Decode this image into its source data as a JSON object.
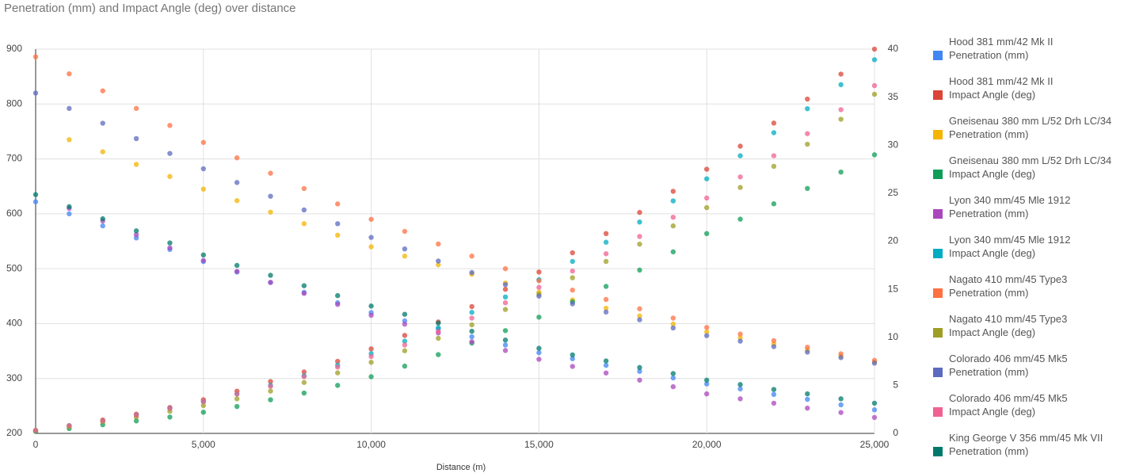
{
  "chart_data": {
    "type": "scatter",
    "title": "Penetration (mm) and Impact Angle (deg) over distance",
    "xlabel": "Distance (m)",
    "x": [
      0,
      1000,
      2000,
      3000,
      4000,
      5000,
      6000,
      7000,
      8000,
      9000,
      10000,
      11000,
      12000,
      13000,
      14000,
      15000,
      16000,
      17000,
      18000,
      19000,
      20000,
      21000,
      22000,
      23000,
      24000,
      25000
    ],
    "xlim": [
      0,
      25000
    ],
    "xticks": [
      0,
      {
        "value": 5000,
        "label": "5,000"
      },
      {
        "value": 10000,
        "label": "10,000"
      },
      {
        "value": 15000,
        "label": "15,000"
      },
      {
        "value": 20000,
        "label": "20,000"
      },
      {
        "value": 25000,
        "label": "25,000"
      }
    ],
    "ylim": [
      200,
      900
    ],
    "yticks": [
      200,
      300,
      400,
      500,
      600,
      700,
      800,
      900
    ],
    "y2lim": [
      0,
      40
    ],
    "y2ticks": [
      0,
      5,
      10,
      15,
      20,
      25,
      30,
      35,
      40
    ],
    "grid": true,
    "legend_position": "right",
    "series": [
      {
        "name": "Hood 381 mm/42 Mk II\nPenetration (mm)",
        "color": "#4285f4",
        "values": [
          622,
          600,
          578,
          556,
          535,
          513,
          494,
          475,
          457,
          438,
          420,
          405,
          390,
          376,
          361,
          347,
          336,
          324,
          313,
          301,
          290,
          281,
          271,
          262,
          252,
          243
        ]
      },
      {
        "name": "Hood 381 mm/42 Mk II\nImpact Angle (deg)",
        "color": "#db4437",
        "axis": "y2",
        "values": [
          0.3,
          0.8,
          1.4,
          2.0,
          2.7,
          3.5,
          4.4,
          5.4,
          6.4,
          7.5,
          8.8,
          10.2,
          11.6,
          13.2,
          15.0,
          16.8,
          18.8,
          20.8,
          23.0,
          25.2,
          27.5,
          29.9,
          32.3,
          34.8,
          37.4,
          40.0
        ]
      },
      {
        "name": "Gneisenau 380 mm L/52 Drh LC/34\nPenetration (mm)",
        "color": "#f4b400",
        "values": [
          null,
          735,
          713,
          690,
          668,
          645,
          624,
          603,
          582,
          561,
          540,
          523,
          507,
          490,
          474,
          457,
          443,
          428,
          414,
          399,
          385,
          374,
          363,
          352,
          341,
          330
        ]
      },
      {
        "name": "Gneisenau 380 mm L/52 Drh LC/34\nImpact Angle (deg)",
        "color": "#0f9d58",
        "axis": "y2",
        "values": [
          0.2,
          0.5,
          0.9,
          1.3,
          1.7,
          2.2,
          2.8,
          3.5,
          4.2,
          5.0,
          5.9,
          7.0,
          8.2,
          9.4,
          10.7,
          12.1,
          13.7,
          15.3,
          17.0,
          18.9,
          20.8,
          22.3,
          23.9,
          25.5,
          27.2,
          29.0
        ]
      },
      {
        "name": "Lyon 340 mm/45 Mle 1912\nPenetration (mm)",
        "color": "#ab47bc",
        "values": [
          null,
          610,
          587,
          562,
          538,
          515,
          495,
          475,
          455,
          435,
          415,
          399,
          383,
          367,
          351,
          335,
          322,
          310,
          297,
          285,
          272,
          263,
          255,
          246,
          238,
          229
        ]
      },
      {
        "name": "Lyon 340 mm/45 Mle 1912\nImpact Angle (deg)",
        "color": "#00acc1",
        "axis": "y2",
        "values": [
          0.3,
          0.8,
          1.3,
          1.9,
          2.6,
          3.3,
          4.1,
          5.0,
          6.0,
          7.1,
          8.3,
          9.6,
          11.0,
          12.6,
          14.2,
          16.0,
          17.9,
          19.9,
          22.0,
          24.2,
          26.5,
          28.9,
          31.3,
          33.8,
          36.3,
          38.9
        ]
      },
      {
        "name": "Nagato 410 mm/45 Type3\nPenetration (mm)",
        "color": "#ff7043",
        "values": [
          886,
          855,
          824,
          792,
          761,
          730,
          702,
          674,
          646,
          618,
          590,
          568,
          545,
          523,
          500,
          478,
          461,
          444,
          427,
          410,
          393,
          381,
          369,
          357,
          345,
          333
        ]
      },
      {
        "name": "Nagato 410 mm/45 Type3\nImpact Angle (deg)",
        "color": "#9e9d24",
        "axis": "y2",
        "values": [
          0.3,
          0.7,
          1.2,
          1.7,
          2.3,
          2.9,
          3.6,
          4.4,
          5.3,
          6.3,
          7.4,
          8.6,
          9.9,
          11.3,
          12.9,
          14.5,
          16.2,
          17.9,
          19.7,
          21.6,
          23.5,
          25.6,
          27.8,
          30.1,
          32.7,
          35.3
        ]
      },
      {
        "name": "Colorado 406 mm/45 Mk5\nPenetration (mm)",
        "color": "#5c6bc0",
        "values": [
          820,
          792,
          765,
          737,
          710,
          682,
          657,
          632,
          607,
          582,
          557,
          536,
          514,
          493,
          471,
          450,
          436,
          421,
          407,
          392,
          378,
          368,
          358,
          348,
          338,
          328
        ]
      },
      {
        "name": "Colorado 406 mm/45 Mk5\nImpact Angle (deg)",
        "color": "#f06292",
        "axis": "y2",
        "values": [
          0.3,
          0.8,
          1.3,
          1.9,
          2.6,
          3.3,
          4.1,
          4.9,
          5.9,
          6.9,
          8.0,
          9.2,
          10.6,
          12.0,
          13.6,
          15.2,
          16.9,
          18.7,
          20.5,
          22.5,
          24.5,
          26.7,
          28.9,
          31.2,
          33.7,
          36.2
        ]
      },
      {
        "name": "King George V 356 mm/45 Mk VII\nPenetration (mm)",
        "color": "#00796b",
        "values": [
          635,
          613,
          591,
          569,
          547,
          525,
          506,
          488,
          469,
          451,
          432,
          417,
          401,
          386,
          370,
          355,
          343,
          332,
          320,
          309,
          297,
          289,
          280,
          272,
          263,
          255
        ]
      }
    ]
  }
}
